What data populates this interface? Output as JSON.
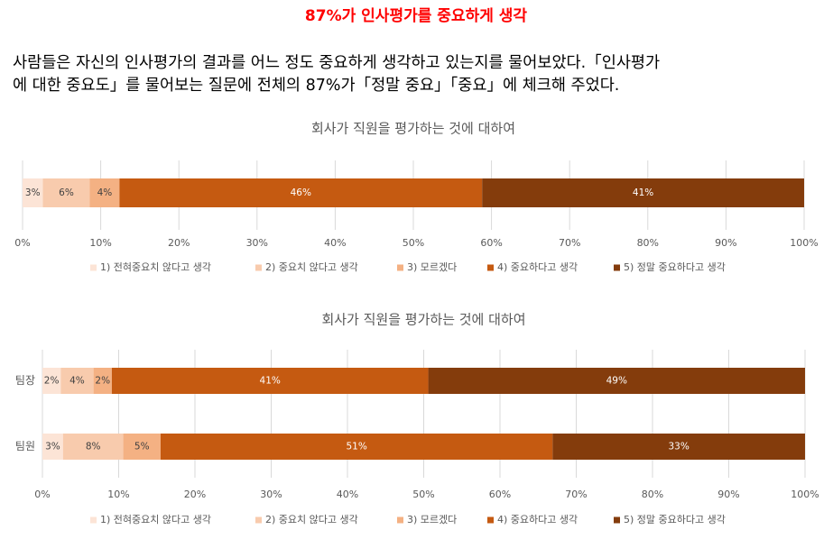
{
  "header": {
    "title": "87%가 인사평가를 중요하게 생각",
    "paragraph": [
      "사람들은 자신의 인사평가의 결과를 어느 정도 중요하게 생각하고 있는지를 물어보았다.「인사평가",
      "에 대한 중요도」를 물어보는 질문에 전체의 87%가「정말 중요」「중요」에 체크해 주었다."
    ]
  },
  "chart_data": [
    {
      "type": "bar",
      "orientation": "horizontal",
      "stacked": true,
      "title": "회사가 직원을 평가하는 것에 대하여",
      "categories": [
        null
      ],
      "series": [
        {
          "name": "1) 전혀중요치 않다고 생각",
          "color": "#fce4d6",
          "values": [
            2.6
          ],
          "value_labels": [
            "3%"
          ]
        },
        {
          "name": "2) 중요치 않다고 생각",
          "color": "#f8cbad",
          "values": [
            6.0
          ],
          "value_labels": [
            "6%"
          ]
        },
        {
          "name": "3) 모르겠다",
          "color": "#f4b183",
          "values": [
            3.8
          ],
          "value_labels": [
            "4%"
          ]
        },
        {
          "name": "4) 중요하다고 생각",
          "color": "#c55a11",
          "values": [
            46.4
          ],
          "value_labels": [
            "46%"
          ]
        },
        {
          "name": "5) 정말 중요하다고 생각",
          "color": "#843c0c",
          "values": [
            41.2
          ],
          "value_labels": [
            "41%"
          ]
        }
      ],
      "xlim": [
        0,
        100
      ],
      "xticks": [
        {
          "value": 0,
          "label": "0%"
        },
        {
          "value": 10,
          "label": "10%"
        },
        {
          "value": 20,
          "label": "20%"
        },
        {
          "value": 30,
          "label": "30%"
        },
        {
          "value": 40,
          "label": "40%"
        },
        {
          "value": 50,
          "label": "50%"
        },
        {
          "value": 60,
          "label": "60%"
        },
        {
          "value": 70,
          "label": "70%"
        },
        {
          "value": 80,
          "label": "80%"
        },
        {
          "value": 90,
          "label": "90%"
        },
        {
          "value": 100,
          "label": "100%"
        }
      ],
      "grid": true,
      "legend": "bottom"
    },
    {
      "type": "bar",
      "orientation": "horizontal",
      "stacked": true,
      "title": "회사가 직원을 평가하는 것에 대하여",
      "categories": [
        "팀장",
        "팀원"
      ],
      "series": [
        {
          "name": "1) 전혀중요치 않다고 생각",
          "color": "#fce4d6",
          "values": [
            2.4,
            2.7
          ],
          "value_labels": [
            "2%",
            "3%"
          ]
        },
        {
          "name": "2) 중요치 않다고 생각",
          "color": "#f8cbad",
          "values": [
            4.3,
            7.9
          ],
          "value_labels": [
            "4%",
            "8%"
          ]
        },
        {
          "name": "3) 모르겠다",
          "color": "#f4b183",
          "values": [
            2.4,
            4.9
          ],
          "value_labels": [
            "2%",
            "5%"
          ]
        },
        {
          "name": "4) 중요하다고 생각",
          "color": "#c55a11",
          "values": [
            41.5,
            51.4
          ],
          "value_labels": [
            "41%",
            "51%"
          ]
        },
        {
          "name": "5) 정말 중요하다고 생각",
          "color": "#843c0c",
          "values": [
            49.4,
            33.1
          ],
          "value_labels": [
            "49%",
            "33%"
          ]
        }
      ],
      "xlim": [
        0,
        100
      ],
      "xticks": [
        {
          "value": 0,
          "label": "0%"
        },
        {
          "value": 10,
          "label": "10%"
        },
        {
          "value": 20,
          "label": "20%"
        },
        {
          "value": 30,
          "label": "30%"
        },
        {
          "value": 40,
          "label": "40%"
        },
        {
          "value": 50,
          "label": "50%"
        },
        {
          "value": 60,
          "label": "60%"
        },
        {
          "value": 70,
          "label": "70%"
        },
        {
          "value": 80,
          "label": "80%"
        },
        {
          "value": 90,
          "label": "90%"
        },
        {
          "value": 100,
          "label": "100%"
        }
      ],
      "grid": true,
      "legend": "bottom"
    }
  ]
}
